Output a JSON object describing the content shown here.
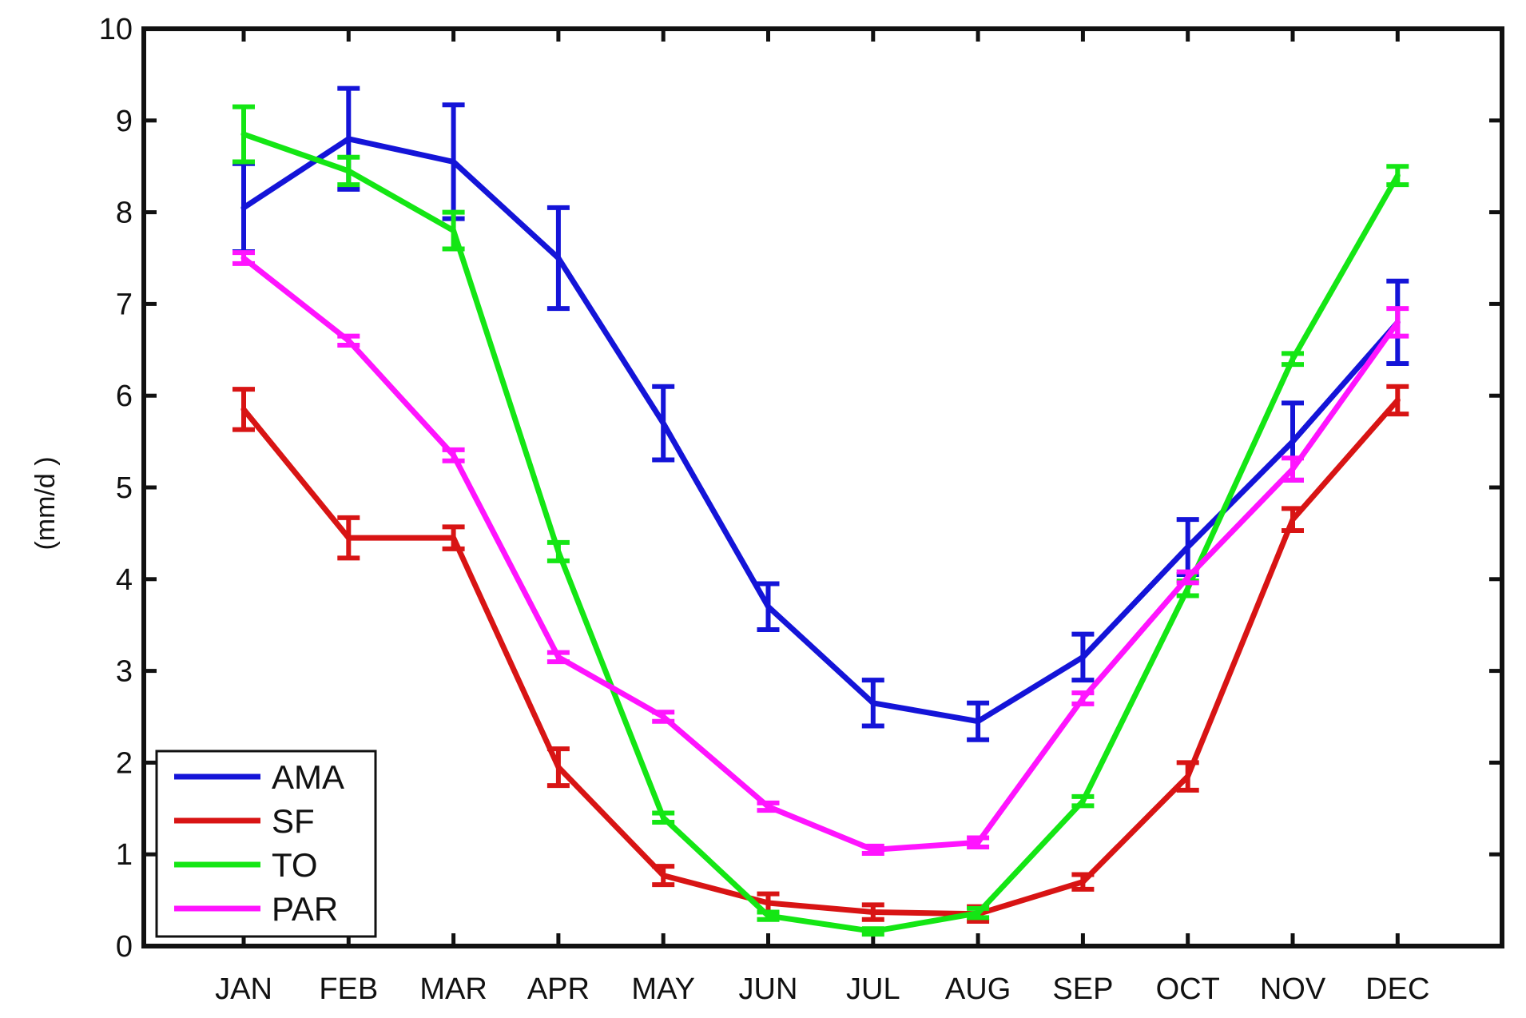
{
  "chart_data": {
    "type": "line",
    "title": "",
    "xlabel": "",
    "ylabel": "(mm/d )",
    "categories": [
      "JAN",
      "FEB",
      "MAR",
      "APR",
      "MAY",
      "JUN",
      "JUL",
      "AUG",
      "SEP",
      "OCT",
      "NOV",
      "DEC"
    ],
    "ylim": [
      0,
      10
    ],
    "yticks": [
      0,
      1,
      2,
      3,
      4,
      5,
      6,
      7,
      8,
      9,
      10
    ],
    "grid": false,
    "error_bars": true,
    "legend": {
      "position": "bottom-left"
    },
    "series": [
      {
        "name": "AMA",
        "color": "#1414d8",
        "values": [
          8.05,
          8.8,
          8.55,
          7.5,
          5.7,
          3.7,
          2.65,
          2.45,
          3.15,
          4.35,
          5.5,
          6.8
        ],
        "errors": [
          0.48,
          0.55,
          0.62,
          0.55,
          0.4,
          0.25,
          0.25,
          0.2,
          0.25,
          0.3,
          0.42,
          0.45
        ]
      },
      {
        "name": "SF",
        "color": "#d81414",
        "values": [
          5.85,
          4.45,
          4.45,
          1.95,
          0.77,
          0.47,
          0.37,
          0.35,
          0.7,
          1.85,
          4.65,
          5.95
        ],
        "errors": [
          0.22,
          0.22,
          0.12,
          0.2,
          0.1,
          0.1,
          0.08,
          0.08,
          0.08,
          0.15,
          0.12,
          0.15
        ]
      },
      {
        "name": "TO",
        "color": "#14e614",
        "values": [
          8.85,
          8.45,
          7.8,
          4.3,
          1.4,
          0.33,
          0.16,
          0.36,
          1.58,
          3.9,
          6.4,
          8.4
        ],
        "errors": [
          0.3,
          0.15,
          0.2,
          0.1,
          0.05,
          0.04,
          0.03,
          0.05,
          0.05,
          0.08,
          0.06,
          0.1
        ]
      },
      {
        "name": "PAR",
        "color": "#ff14ff",
        "values": [
          7.5,
          6.6,
          5.35,
          3.15,
          2.5,
          1.52,
          1.05,
          1.13,
          2.7,
          4.02,
          5.2,
          6.8
        ],
        "errors": [
          0.06,
          0.05,
          0.06,
          0.05,
          0.05,
          0.04,
          0.04,
          0.05,
          0.06,
          0.06,
          0.12,
          0.15
        ]
      }
    ]
  }
}
